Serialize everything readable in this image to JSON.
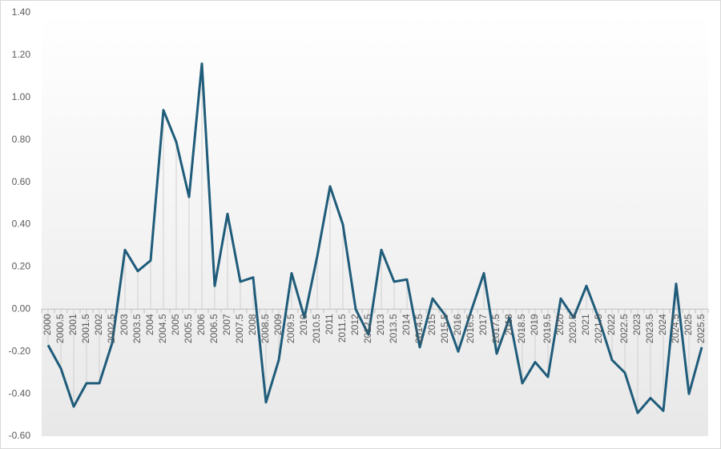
{
  "chart_data": {
    "type": "line",
    "categories": [
      "2000",
      "2000.5",
      "2001",
      "2001.5",
      "2002",
      "2002.5",
      "2003",
      "2003.5",
      "2004",
      "2004.5",
      "2005",
      "2005.5",
      "2006",
      "2006.5",
      "2007",
      "2007.5",
      "2008",
      "2008.5",
      "2009",
      "2009.5",
      "2010",
      "2010.5",
      "2011",
      "2011.5",
      "2012",
      "2012.5",
      "2013",
      "2013.5",
      "2014",
      "2014.5",
      "2015",
      "2015.5",
      "2016",
      "2016.5",
      "2017",
      "2017.5",
      "2018",
      "2018.5",
      "2019",
      "2019.5",
      "2020",
      "2020.5",
      "2021",
      "2021.5",
      "2022",
      "2022.5",
      "2023",
      "2023.5",
      "2024",
      "2024.5",
      "2025",
      "2025.5"
    ],
    "values": [
      -0.17,
      -0.28,
      -0.46,
      -0.35,
      -0.35,
      -0.16,
      0.28,
      0.18,
      0.23,
      0.94,
      0.79,
      0.53,
      1.16,
      0.11,
      0.45,
      0.13,
      0.15,
      -0.44,
      -0.24,
      0.17,
      -0.04,
      0.25,
      0.58,
      0.4,
      0.0,
      -0.12,
      0.28,
      0.13,
      0.14,
      -0.18,
      0.05,
      -0.03,
      -0.2,
      -0.01,
      0.17,
      -0.21,
      -0.04,
      -0.35,
      -0.25,
      -0.32,
      0.05,
      -0.04,
      0.11,
      -0.05,
      -0.24,
      -0.3,
      -0.49,
      -0.42,
      -0.48,
      0.12,
      -0.4,
      -0.18
    ],
    "color": "#1f5c7a",
    "drop_lines": true,
    "ylim": [
      -0.6,
      1.4
    ],
    "yticks": [
      {
        "value": -0.6,
        "label": "-0.60"
      },
      {
        "value": -0.4,
        "label": "-0.40"
      },
      {
        "value": -0.2,
        "label": "-0.20"
      },
      {
        "value": 0,
        "label": "0.00"
      },
      {
        "value": 0.2,
        "label": "0.20"
      },
      {
        "value": 0.4,
        "label": "0.40"
      },
      {
        "value": 0.6,
        "label": "0.60"
      },
      {
        "value": 0.8,
        "label": "0.80"
      },
      {
        "value": 1.0,
        "label": "1.00"
      },
      {
        "value": 1.2,
        "label": "1.20"
      },
      {
        "value": 1.4,
        "label": "1.40"
      }
    ],
    "grid": false
  }
}
